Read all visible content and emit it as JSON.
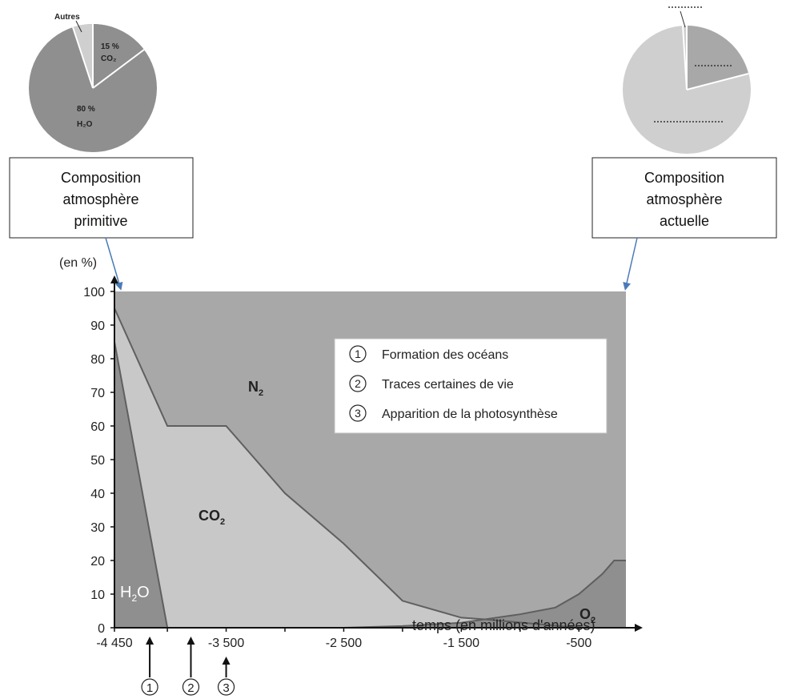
{
  "left_box": {
    "lines": [
      "Composition",
      "atmosphère",
      "primitive"
    ]
  },
  "right_box": {
    "lines": [
      "Composition",
      "atmosphère",
      "actuelle"
    ]
  },
  "primitive_pie": {
    "slices": [
      {
        "label": "Autres",
        "percent": 5,
        "color": "#cfcfcf"
      },
      {
        "label": "CO₂",
        "value_label": "15 %",
        "percent": 15,
        "color": "#8f8f8f"
      },
      {
        "label": "H₂O",
        "value_label": "80 %",
        "percent": 80,
        "color": "#8f8f8f"
      }
    ]
  },
  "current_pie": {
    "note": "unlabelled slices shown with dotted blanks",
    "slices": [
      {
        "label": "",
        "percent": 1,
        "color": "#cfcfcf"
      },
      {
        "label": "",
        "percent": 21,
        "color": "#a8a8a8"
      },
      {
        "label": "",
        "percent": 78,
        "color": "#cfcfcf"
      }
    ]
  },
  "chart_data": {
    "type": "area",
    "ylabel": "(en %)",
    "xlabel": "temps (en millions d'années)",
    "xlim": [
      -4450,
      -100
    ],
    "ylim": [
      0,
      100
    ],
    "x_ticks": [
      "-4 450",
      "-3 500",
      "-2 500",
      "-1 500",
      "-500"
    ],
    "x_tick_values": [
      -4450,
      -3500,
      -2500,
      -1500,
      -500
    ],
    "y_ticks": [
      0,
      10,
      20,
      30,
      40,
      50,
      60,
      70,
      80,
      90,
      100
    ],
    "series": [
      {
        "name": "H₂O",
        "label": "H₂O",
        "color": "#8f8f8f",
        "points": [
          [
            -4450,
            85
          ],
          [
            -4000,
            0
          ]
        ]
      },
      {
        "name": "CO₂",
        "label": "CO₂",
        "color": "#c8c8c8",
        "points": [
          [
            -4450,
            95
          ],
          [
            -4000,
            60
          ],
          [
            -3500,
            60
          ],
          [
            -3000,
            40
          ],
          [
            -2500,
            25
          ],
          [
            -2000,
            8
          ],
          [
            -1500,
            3
          ],
          [
            -1300,
            2.5
          ],
          [
            -500,
            0
          ],
          [
            -100,
            0
          ]
        ]
      },
      {
        "name": "N₂",
        "label": "N₂",
        "color": "#a8a8a8",
        "top": 100
      },
      {
        "name": "O₂",
        "label": "O₂",
        "color": "#8f8f8f",
        "points": [
          [
            -2500,
            0
          ],
          [
            -2000,
            0.5
          ],
          [
            -1500,
            1.5
          ],
          [
            -1000,
            4
          ],
          [
            -700,
            6
          ],
          [
            -500,
            10
          ],
          [
            -300,
            16
          ],
          [
            -200,
            20
          ],
          [
            -100,
            20
          ]
        ]
      }
    ],
    "legend": {
      "position": "top-right",
      "items": [
        {
          "num": "1",
          "text": "Formation des océans"
        },
        {
          "num": "2",
          "text": "Traces certaines de vie"
        },
        {
          "num": "3",
          "text": "Apparition de la photosynthèse"
        }
      ]
    },
    "events": [
      {
        "num": "1",
        "x": -4150
      },
      {
        "num": "2",
        "x": -3800
      },
      {
        "num": "3",
        "x": -3500
      }
    ]
  }
}
